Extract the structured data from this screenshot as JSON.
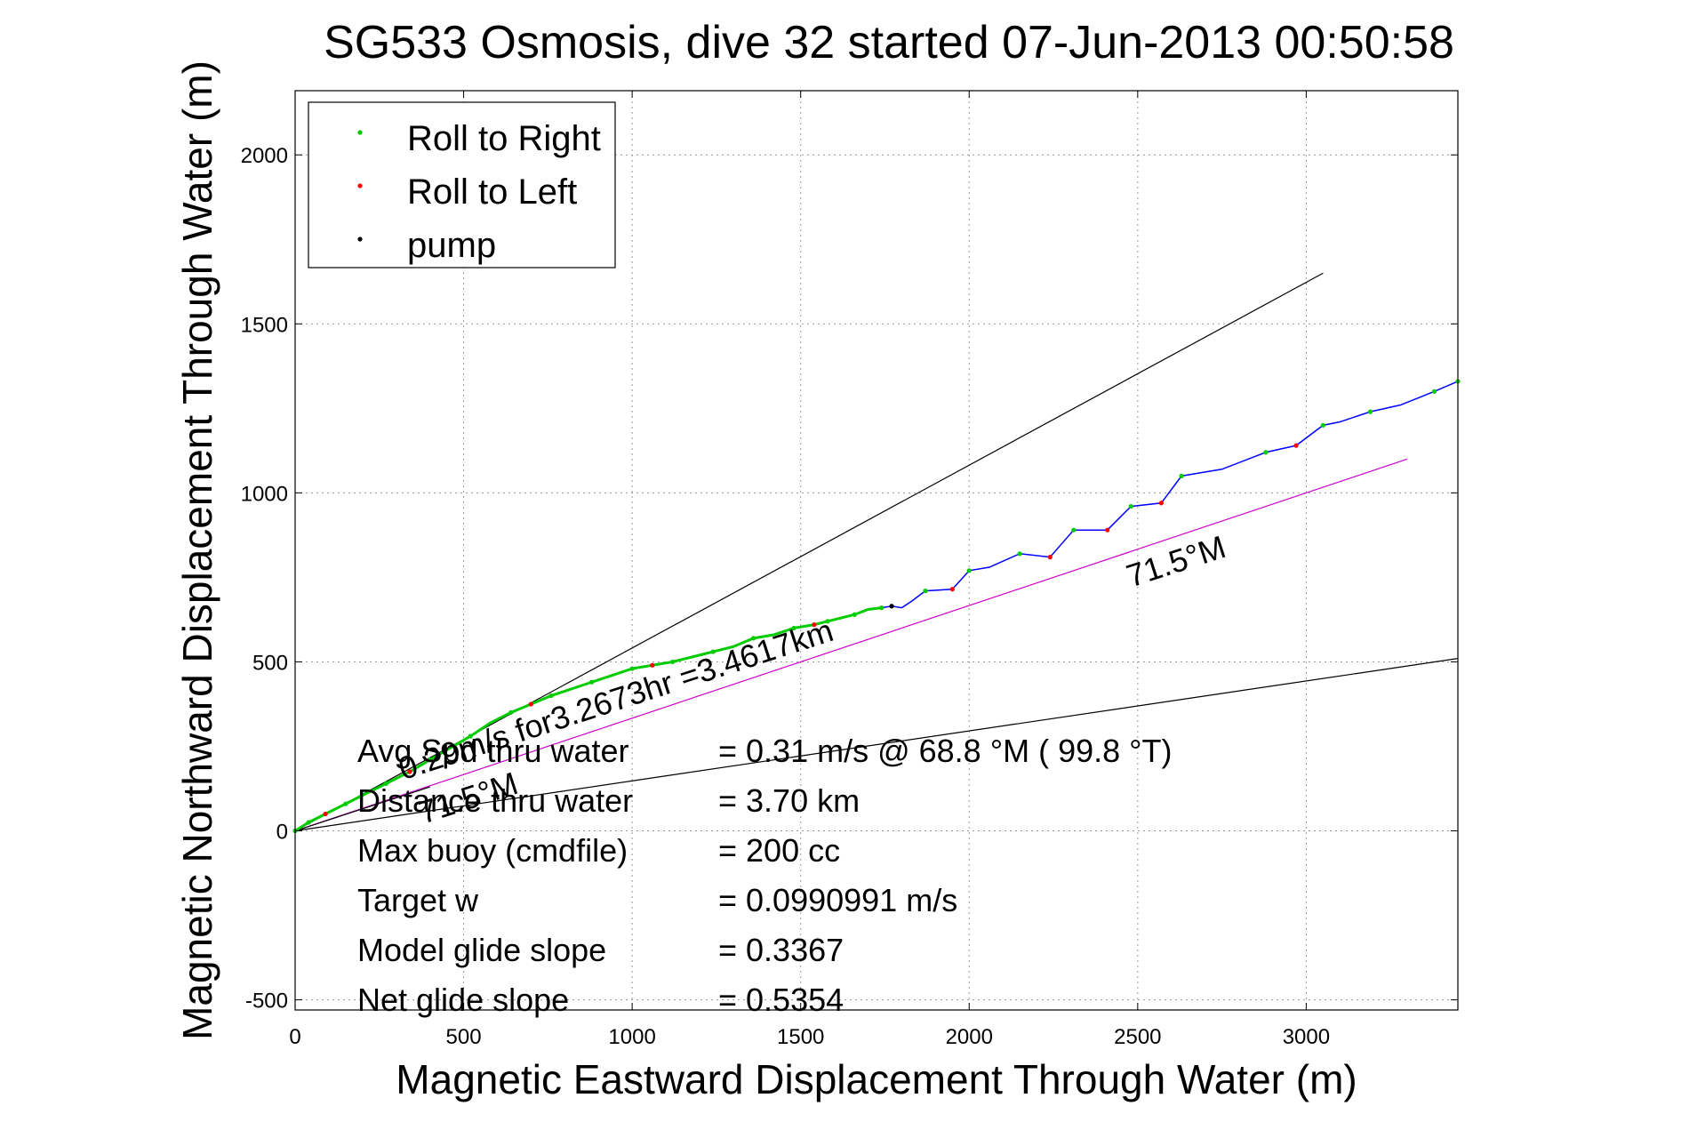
{
  "chart_data": {
    "type": "line",
    "title": "SG533 Osmosis, dive 32 started 07-Jun-2013 00:50:58",
    "xlabel": "Magnetic Eastward Displacement Through Water (m)",
    "ylabel": "Magnetic Northward Displacement Through Water (m)",
    "xlim": [
      0,
      3450
    ],
    "ylim": [
      -530,
      2190
    ],
    "xticks": [
      0,
      500,
      1000,
      1500,
      2000,
      2500,
      3000
    ],
    "yticks": [
      -500,
      0,
      500,
      1000,
      1500,
      2000
    ],
    "xtick_labels": [
      "0",
      "500",
      "1000",
      "1500",
      "2000",
      "2500",
      "3000"
    ],
    "ytick_labels": [
      "-500",
      "0",
      "500",
      "1000",
      "1500",
      "2000"
    ],
    "grid": true,
    "legend_position": "top-left",
    "legend": [
      {
        "label": "Roll to Right",
        "color": "#00cc00"
      },
      {
        "label": "Roll to Left",
        "color": "#ff0000"
      },
      {
        "label": "pump",
        "color": "#000000"
      }
    ],
    "series": [
      {
        "color": "#0000ff",
        "x": [
          0,
          40,
          90,
          150,
          210,
          270,
          340,
          400,
          460,
          520,
          580,
          640,
          700,
          760,
          820,
          880,
          940,
          1000,
          1060,
          1120,
          1180,
          1240,
          1300,
          1360,
          1420,
          1480,
          1540,
          1580,
          1620,
          1660,
          1700,
          1740,
          1770,
          1800,
          1830,
          1870,
          1950,
          2000,
          2060,
          2150,
          2240,
          2310,
          2410,
          2480,
          2570,
          2630,
          2750,
          2880,
          2970,
          3050,
          3100,
          3190,
          3280,
          3380,
          3450
        ],
        "y": [
          0,
          25,
          50,
          80,
          110,
          140,
          175,
          210,
          245,
          280,
          320,
          350,
          375,
          400,
          420,
          440,
          460,
          480,
          490,
          500,
          515,
          530,
          545,
          570,
          580,
          600,
          610,
          620,
          630,
          640,
          655,
          660,
          665,
          660,
          680,
          710,
          715,
          770,
          780,
          820,
          810,
          890,
          890,
          960,
          970,
          1050,
          1070,
          1120,
          1140,
          1200,
          1210,
          1240,
          1260,
          1300,
          1330
        ]
      }
    ],
    "markers": {
      "roll_right": {
        "color": "#00cc00",
        "x": [
          0,
          40,
          150,
          270,
          400,
          520,
          640,
          760,
          880,
          1000,
          1120,
          1240,
          1360,
          1480,
          1580,
          1660,
          1740,
          1870,
          2000,
          2150,
          2310,
          2480,
          2630,
          2880,
          3050,
          3190,
          3380,
          3450
        ],
        "y": [
          0,
          25,
          80,
          140,
          210,
          280,
          350,
          400,
          440,
          480,
          500,
          530,
          570,
          600,
          620,
          640,
          660,
          710,
          770,
          820,
          890,
          960,
          1050,
          1120,
          1200,
          1240,
          1300,
          1330
        ]
      },
      "roll_left": {
        "color": "#ff0000",
        "x": [
          90,
          340,
          700,
          1060,
          1540,
          1950,
          2240,
          2410,
          2570,
          2970
        ],
        "y": [
          50,
          175,
          375,
          490,
          610,
          715,
          810,
          890,
          970,
          1140
        ]
      },
      "pump": {
        "color": "#000000",
        "x": [
          1770
        ],
        "y": [
          665
        ]
      }
    },
    "reference_lines": [
      {
        "name": "upper envelope",
        "color": "#000000",
        "x": [
          0,
          3050
        ],
        "y": [
          0,
          1650
        ]
      },
      {
        "name": "lower envelope",
        "color": "#000000",
        "x": [
          0,
          3450
        ],
        "y": [
          0,
          510
        ]
      },
      {
        "name": "heading line",
        "color": "#cc00cc",
        "x": [
          0,
          3300
        ],
        "y": [
          0,
          1100
        ]
      },
      {
        "name": "short line",
        "color": "#000000",
        "x": [
          0,
          400
        ],
        "y": [
          0,
          130
        ]
      }
    ],
    "annotations": [
      {
        "text": "71.5°M",
        "x": 2480,
        "y": 720,
        "rotation": -18
      },
      {
        "text": "0.29m/s for3.2673hr =3.4617km",
        "x": 320,
        "y": 150,
        "rotation": -18
      },
      {
        "text": "71.5°M",
        "x": 380,
        "y": 20,
        "rotation": -18
      }
    ],
    "summary": [
      {
        "label": "Avg Spd thru water",
        "value": "=  0.31 m/s @  68.8 °M ( 99.8 °T)"
      },
      {
        "label": "Distance thru water",
        "value": "=  3.70 km"
      },
      {
        "label": "Max buoy (cmdfile)",
        "value": "= 200 cc"
      },
      {
        "label": "Target w",
        "value": "= 0.0990991 m/s"
      },
      {
        "label": "Model glide slope",
        "value": "= 0.3367"
      },
      {
        "label": "Net glide slope",
        "value": "= 0.5354"
      }
    ]
  }
}
